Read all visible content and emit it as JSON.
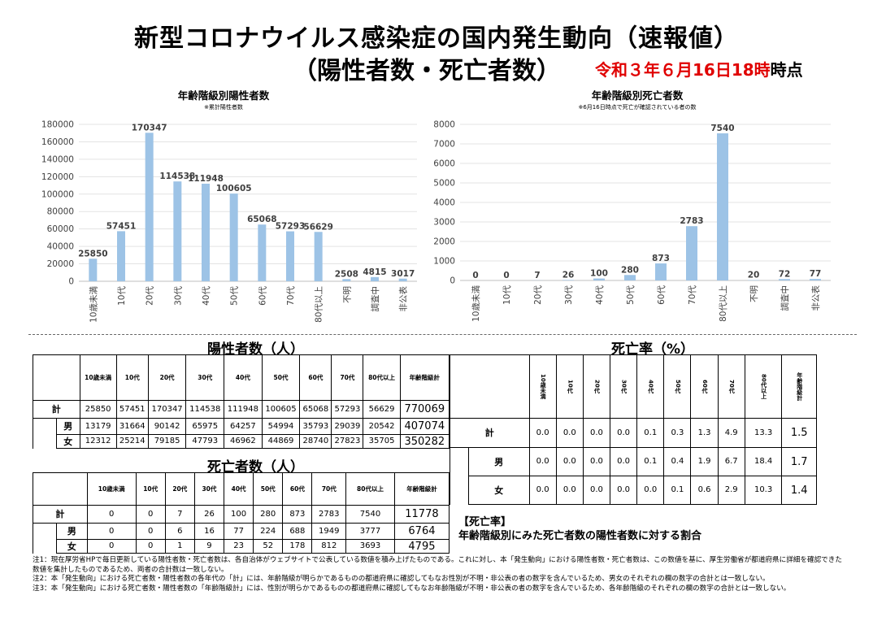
{
  "title": {
    "line1": "新型コロナウイルス感染症の国内発生動向（速報値）",
    "line2": "（陽性者数・死亡者数）",
    "date": "令和３年６月16日18時",
    "date_suffix": "時点"
  },
  "chart_data": [
    {
      "type": "bar",
      "title": "年齢階級別陽性者数",
      "subtitle": "※累計陽性者数",
      "categories": [
        "10歳未満",
        "10代",
        "20代",
        "30代",
        "40代",
        "50代",
        "60代",
        "70代",
        "80代以上",
        "不明",
        "調査中",
        "非公表"
      ],
      "values": [
        25850,
        57451,
        170347,
        114538,
        111948,
        100605,
        65068,
        57293,
        56629,
        2508,
        4815,
        3017
      ],
      "ylim": [
        0,
        180000
      ],
      "yticks": [
        0,
        20000,
        40000,
        60000,
        80000,
        100000,
        120000,
        140000,
        160000,
        180000
      ],
      "grid": true,
      "color": "#9dc3e6"
    },
    {
      "type": "bar",
      "title": "年齢階級別死亡者数",
      "subtitle": "※6月16日時点で死亡が確認されている者の数",
      "categories": [
        "10歳未満",
        "10代",
        "20代",
        "30代",
        "40代",
        "50代",
        "60代",
        "70代",
        "80代以上",
        "不明",
        "調査中",
        "非公表"
      ],
      "values": [
        0,
        0,
        7,
        26,
        100,
        280,
        873,
        2783,
        7540,
        20,
        72,
        77
      ],
      "ylim": [
        0,
        8000
      ],
      "yticks": [
        0,
        1000,
        2000,
        3000,
        4000,
        5000,
        6000,
        7000,
        8000
      ],
      "grid": true,
      "color": "#9dc3e6"
    }
  ],
  "positive_table": {
    "title": "陽性者数（人）",
    "headers": [
      "10歳未満",
      "10代",
      "20代",
      "30代",
      "40代",
      "50代",
      "60代",
      "70代",
      "80代以上",
      "年齢階級計"
    ],
    "rows": [
      {
        "label": "計",
        "sub": "",
        "values": [
          "25850",
          "57451",
          "170347",
          "114538",
          "111948",
          "100605",
          "65068",
          "57293",
          "56629"
        ],
        "total": "770069"
      },
      {
        "label": "",
        "sub": "男",
        "values": [
          "13179",
          "31664",
          "90142",
          "65975",
          "64257",
          "54994",
          "35793",
          "29039",
          "20542"
        ],
        "total": "407074"
      },
      {
        "label": "",
        "sub": "女",
        "values": [
          "12312",
          "25214",
          "79185",
          "47793",
          "46962",
          "44869",
          "28740",
          "27823",
          "35705"
        ],
        "total": "350282"
      }
    ]
  },
  "death_table": {
    "title": "死亡者数（人）",
    "headers": [
      "10歳未満",
      "10代",
      "20代",
      "30代",
      "40代",
      "50代",
      "60代",
      "70代",
      "80代以上",
      "年齢階級計"
    ],
    "rows": [
      {
        "label": "計",
        "sub": "",
        "values": [
          "0",
          "0",
          "7",
          "26",
          "100",
          "280",
          "873",
          "2783",
          "7540"
        ],
        "total": "11778"
      },
      {
        "label": "",
        "sub": "男",
        "values": [
          "0",
          "0",
          "6",
          "16",
          "77",
          "224",
          "688",
          "1949",
          "3777"
        ],
        "total": "6764"
      },
      {
        "label": "",
        "sub": "女",
        "values": [
          "0",
          "0",
          "1",
          "9",
          "23",
          "52",
          "178",
          "812",
          "3693"
        ],
        "total": "4795"
      }
    ]
  },
  "fatality_table": {
    "title": "死亡率（%）",
    "headers": [
      "10歳未満",
      "10代",
      "20代",
      "30代",
      "40代",
      "50代",
      "60代",
      "70代",
      "80代以上",
      "年齢階級計"
    ],
    "rows": [
      {
        "label": "計",
        "sub": "",
        "values": [
          "0.0",
          "0.0",
          "0.0",
          "0.0",
          "0.1",
          "0.3",
          "1.3",
          "4.9",
          "13.3"
        ],
        "total": "1.5"
      },
      {
        "label": "",
        "sub": "男",
        "values": [
          "0.0",
          "0.0",
          "0.0",
          "0.0",
          "0.1",
          "0.4",
          "1.9",
          "6.7",
          "18.4"
        ],
        "total": "1.7"
      },
      {
        "label": "",
        "sub": "女",
        "values": [
          "0.0",
          "0.0",
          "0.0",
          "0.0",
          "0.0",
          "0.1",
          "0.6",
          "2.9",
          "10.3"
        ],
        "total": "1.4"
      }
    ]
  },
  "fatality_note": {
    "heading": "【死亡率】",
    "text": "年齢階級別にみた死亡者数の陽性者数に対する割合"
  },
  "notes": [
    "注1：現在厚労省HPで毎日更新している陽性者数・死亡者数は、各自治体がウェブサイトで公表している数値を積み上げたものである。これに対し、本「発生動向」における陽性者数・死亡者数は、この数値を基に、厚生労働省が都道府県に詳細を確認できた数値を集計したものであるため、両者の合計数は一致しない。",
    "注2：本「発生動向」における死亡者数・陽性者数の各年代の「計」には、年齢階級が明らかであるものの都道府県に確認してもなお性別が不明・非公表の者の数字を含んでいるため、男女のそれぞれの欄の数字の合計とは一致しない。",
    "注3：本「発生動向」における死亡者数・陽性者数の「年齢階級計」には、性別が明らかであるものの都道府県に確認してもなお年齢階級が不明・非公表の者の数字を含んでいるため、各年齢階級のそれぞれの欄の数字の合計とは一致しない。"
  ]
}
